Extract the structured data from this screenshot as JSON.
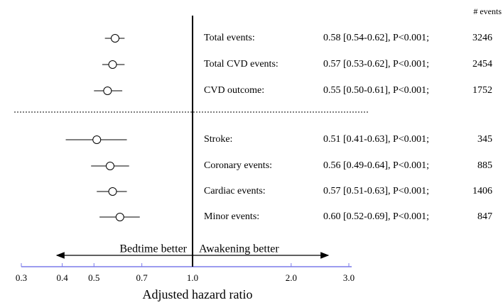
{
  "chart_data": {
    "type": "forest",
    "categories": [
      "Total events:",
      "Total CVD events:",
      "CVD outcome:",
      "Stroke:",
      "Coronary events:",
      "Cardiac events:",
      "Minor events:"
    ],
    "values": [
      0.58,
      0.57,
      0.55,
      0.51,
      0.56,
      0.57,
      0.6
    ],
    "lower": [
      0.54,
      0.53,
      0.5,
      0.41,
      0.49,
      0.51,
      0.52
    ],
    "upper": [
      0.62,
      0.62,
      0.61,
      0.63,
      0.64,
      0.63,
      0.69
    ],
    "value_labels": [
      "0.58 [0.54-0.62], P<0.001;",
      "0.57 [0.53-0.62], P<0.001;",
      "0.55 [0.50-0.61], P<0.001;",
      "0.51 [0.41-0.63], P<0.001;",
      "0.56 [0.49-0.64], P<0.001;",
      "0.57 [0.51-0.63], P<0.001;",
      "0.60 [0.52-0.69], P<0.001;"
    ],
    "events": [
      3246,
      2454,
      1752,
      345,
      885,
      1406,
      847
    ],
    "events_label": "# events",
    "xlabel": "Adjusted hazard ratio",
    "annotations": [
      "Bedtime better",
      "Awakening better"
    ],
    "xscale": "log",
    "xlim": [
      0.3,
      3.0
    ],
    "xticks": [
      0.3,
      0.4,
      0.5,
      0.7,
      {
        "value": 1,
        "label": "1.0"
      },
      {
        "value": 2,
        "label": "2.0"
      },
      {
        "value": 3,
        "label": "3.0"
      }
    ],
    "reference_line": 1,
    "color": "#000000",
    "axis_color": "#7b7bea"
  }
}
